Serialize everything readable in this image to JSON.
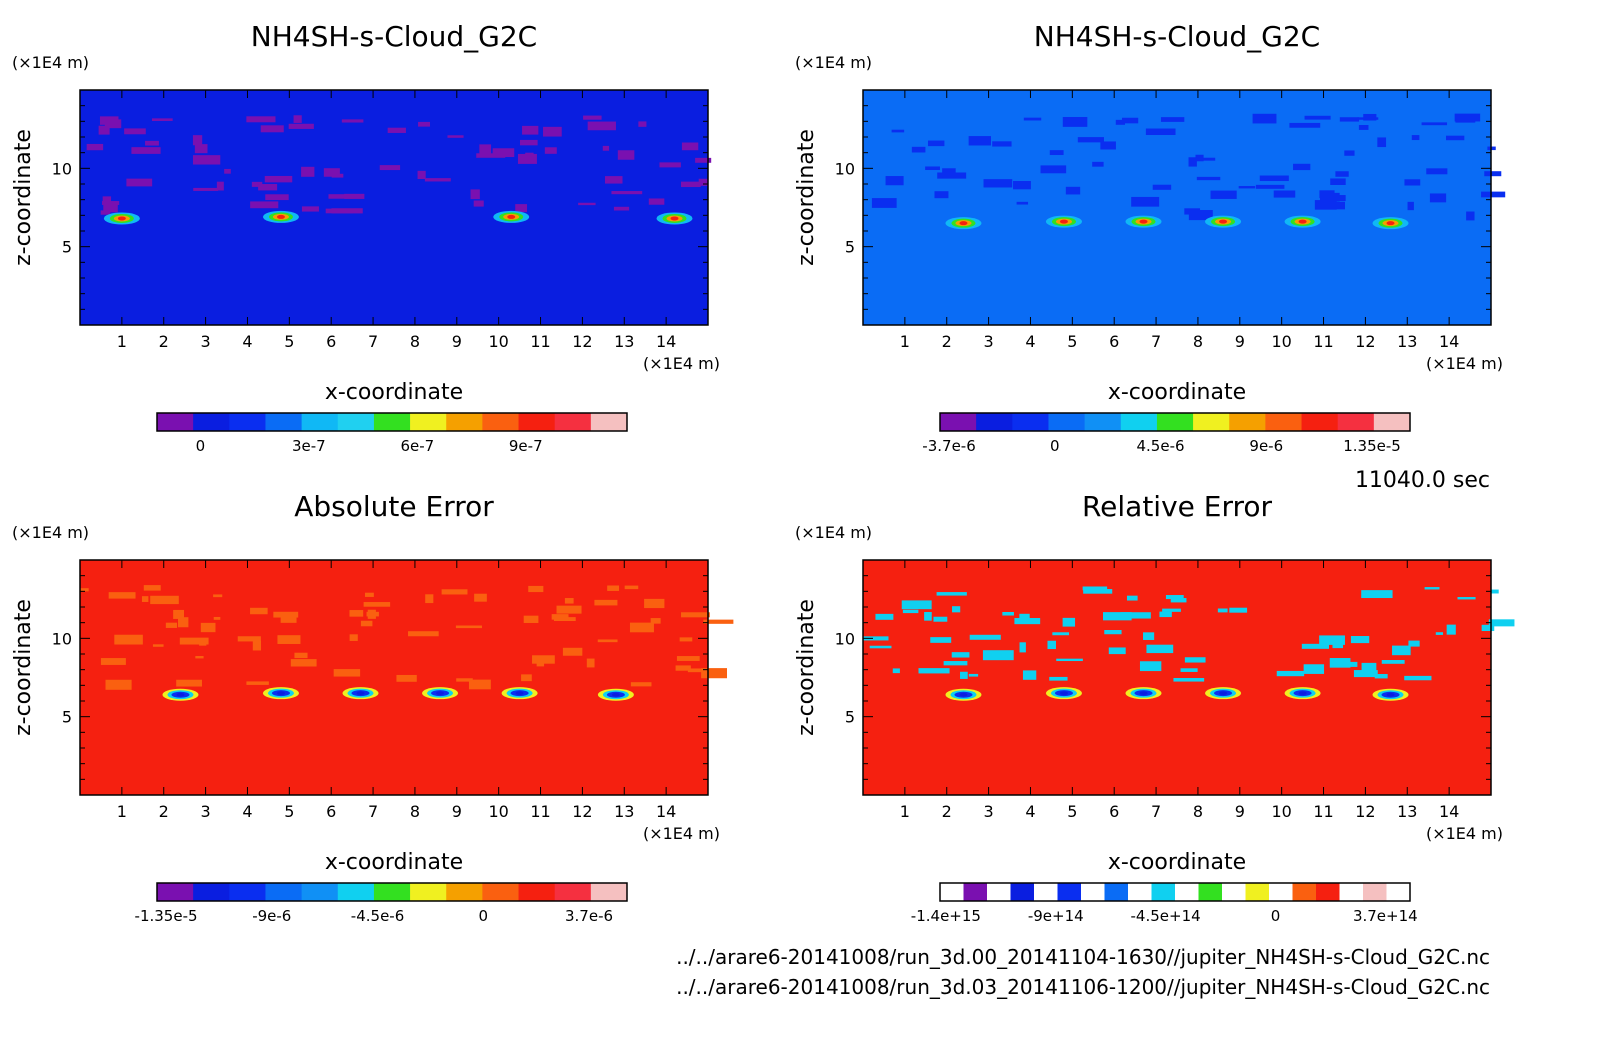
{
  "figure": {
    "time_label": "11040.0 sec",
    "files": [
      "../../arare6-20141008/run_3d.00_20141104-1630//jupiter_NH4SH-s-Cloud_G2C.nc",
      "../../arare6-20141008/run_3d.03_20141106-1200//jupiter_NH4SH-s-Cloud_G2C.nc"
    ]
  },
  "chart_data": [
    {
      "type": "heatmap",
      "title": "NH4SH-s-Cloud_G2C",
      "xlabel": "x-coordinate",
      "ylabel": "z-coordinate",
      "x_unit": "(×1E4 m)",
      "y_unit": "(×1E4 m)",
      "xlim": [
        0,
        15
      ],
      "ylim": [
        0,
        15
      ],
      "x_ticks": [
        "1",
        "2",
        "3",
        "4",
        "5",
        "6",
        "7",
        "8",
        "9",
        "10",
        "11",
        "12",
        "13",
        "14"
      ],
      "y_ticks": [
        "5",
        "10"
      ],
      "background_color": "#0a1ee0",
      "colorbar": {
        "colors": [
          "#7a10b0",
          "#0a1ee0",
          "#0a2ef0",
          "#0a6cf5",
          "#10b8f5",
          "#20d0f0",
          "#33e020",
          "#f0f020",
          "#f5a000",
          "#fa6010",
          "#f52010",
          "#f53040",
          "#f5c0c0"
        ],
        "tick_labels": [
          "0",
          "3e-7",
          "6e-7",
          "9e-7"
        ]
      },
      "hotspots": [
        {
          "x": 1.0,
          "z": 6.8
        },
        {
          "x": 4.8,
          "z": 6.9
        },
        {
          "x": 10.3,
          "z": 6.9
        },
        {
          "x": 14.2,
          "z": 6.8
        }
      ]
    },
    {
      "type": "heatmap",
      "title": "NH4SH-s-Cloud_G2C",
      "xlabel": "x-coordinate",
      "ylabel": "z-coordinate",
      "x_unit": "(×1E4 m)",
      "y_unit": "(×1E4 m)",
      "xlim": [
        0,
        15
      ],
      "ylim": [
        0,
        15
      ],
      "x_ticks": [
        "1",
        "2",
        "3",
        "4",
        "5",
        "6",
        "7",
        "8",
        "9",
        "10",
        "11",
        "12",
        "13",
        "14"
      ],
      "y_ticks": [
        "5",
        "10"
      ],
      "background_color": "#0a6cf5",
      "colorbar": {
        "colors": [
          "#7a10b0",
          "#0a1ee0",
          "#0a2ef0",
          "#0a6cf5",
          "#1090f5",
          "#10d0f0",
          "#33e020",
          "#f0f020",
          "#f5a000",
          "#fa6010",
          "#f52010",
          "#f53040",
          "#f5c0c0"
        ],
        "tick_labels": [
          "-3.7e-6",
          "0",
          "4.5e-6",
          "9e-6",
          "1.35e-5"
        ]
      },
      "hotspots": [
        {
          "x": 2.4,
          "z": 6.5
        },
        {
          "x": 4.8,
          "z": 6.6
        },
        {
          "x": 6.7,
          "z": 6.6
        },
        {
          "x": 8.6,
          "z": 6.6
        },
        {
          "x": 10.5,
          "z": 6.6
        },
        {
          "x": 12.6,
          "z": 6.5
        }
      ]
    },
    {
      "type": "heatmap",
      "title": "Absolute Error",
      "xlabel": "x-coordinate",
      "ylabel": "z-coordinate",
      "x_unit": "(×1E4 m)",
      "y_unit": "(×1E4 m)",
      "xlim": [
        0,
        15
      ],
      "ylim": [
        0,
        15
      ],
      "x_ticks": [
        "1",
        "2",
        "3",
        "4",
        "5",
        "6",
        "7",
        "8",
        "9",
        "10",
        "11",
        "12",
        "13",
        "14"
      ],
      "y_ticks": [
        "5",
        "10"
      ],
      "background_color": "#f52010",
      "colorbar": {
        "colors": [
          "#7a10b0",
          "#0a1ee0",
          "#0a2ef0",
          "#0a6cf5",
          "#1090f5",
          "#10d0f0",
          "#33e020",
          "#f0f020",
          "#f5a000",
          "#fa6010",
          "#f52010",
          "#f53040",
          "#f5c0c0"
        ],
        "tick_labels": [
          "-1.35e-5",
          "-9e-6",
          "-4.5e-6",
          "0",
          "3.7e-6"
        ]
      },
      "hotspots": [
        {
          "x": 2.4,
          "z": 6.4
        },
        {
          "x": 4.8,
          "z": 6.5
        },
        {
          "x": 6.7,
          "z": 6.5
        },
        {
          "x": 8.6,
          "z": 6.5
        },
        {
          "x": 10.5,
          "z": 6.5
        },
        {
          "x": 12.8,
          "z": 6.4
        }
      ]
    },
    {
      "type": "heatmap",
      "title": "Relative Error",
      "xlabel": "x-coordinate",
      "ylabel": "z-coordinate",
      "x_unit": "(×1E4 m)",
      "y_unit": "(×1E4 m)",
      "xlim": [
        0,
        15
      ],
      "ylim": [
        0,
        15
      ],
      "x_ticks": [
        "1",
        "2",
        "3",
        "4",
        "5",
        "6",
        "7",
        "8",
        "9",
        "10",
        "11",
        "12",
        "13",
        "14"
      ],
      "y_ticks": [
        "5",
        "10"
      ],
      "background_color": "#f52010",
      "colorbar": {
        "colors": [
          "#ffffff",
          "#7a10b0",
          "#ffffff",
          "#0a1ee0",
          "#ffffff",
          "#0a2ef0",
          "#ffffff",
          "#0a6cf5",
          "#ffffff",
          "#10d0f0",
          "#ffffff",
          "#33e020",
          "#ffffff",
          "#f0f020",
          "#ffffff",
          "#fa6010",
          "#f52010",
          "#ffffff",
          "#f5c0c0",
          "#ffffff"
        ],
        "tick_labels": [
          "-1.4e+15",
          "-9e+14",
          "-4.5e+14",
          "0",
          "3.7e+14"
        ]
      },
      "hotspots": [
        {
          "x": 2.4,
          "z": 6.4
        },
        {
          "x": 4.8,
          "z": 6.5
        },
        {
          "x": 6.7,
          "z": 6.5
        },
        {
          "x": 8.6,
          "z": 6.5
        },
        {
          "x": 10.5,
          "z": 6.5
        },
        {
          "x": 12.6,
          "z": 6.4
        }
      ]
    }
  ]
}
